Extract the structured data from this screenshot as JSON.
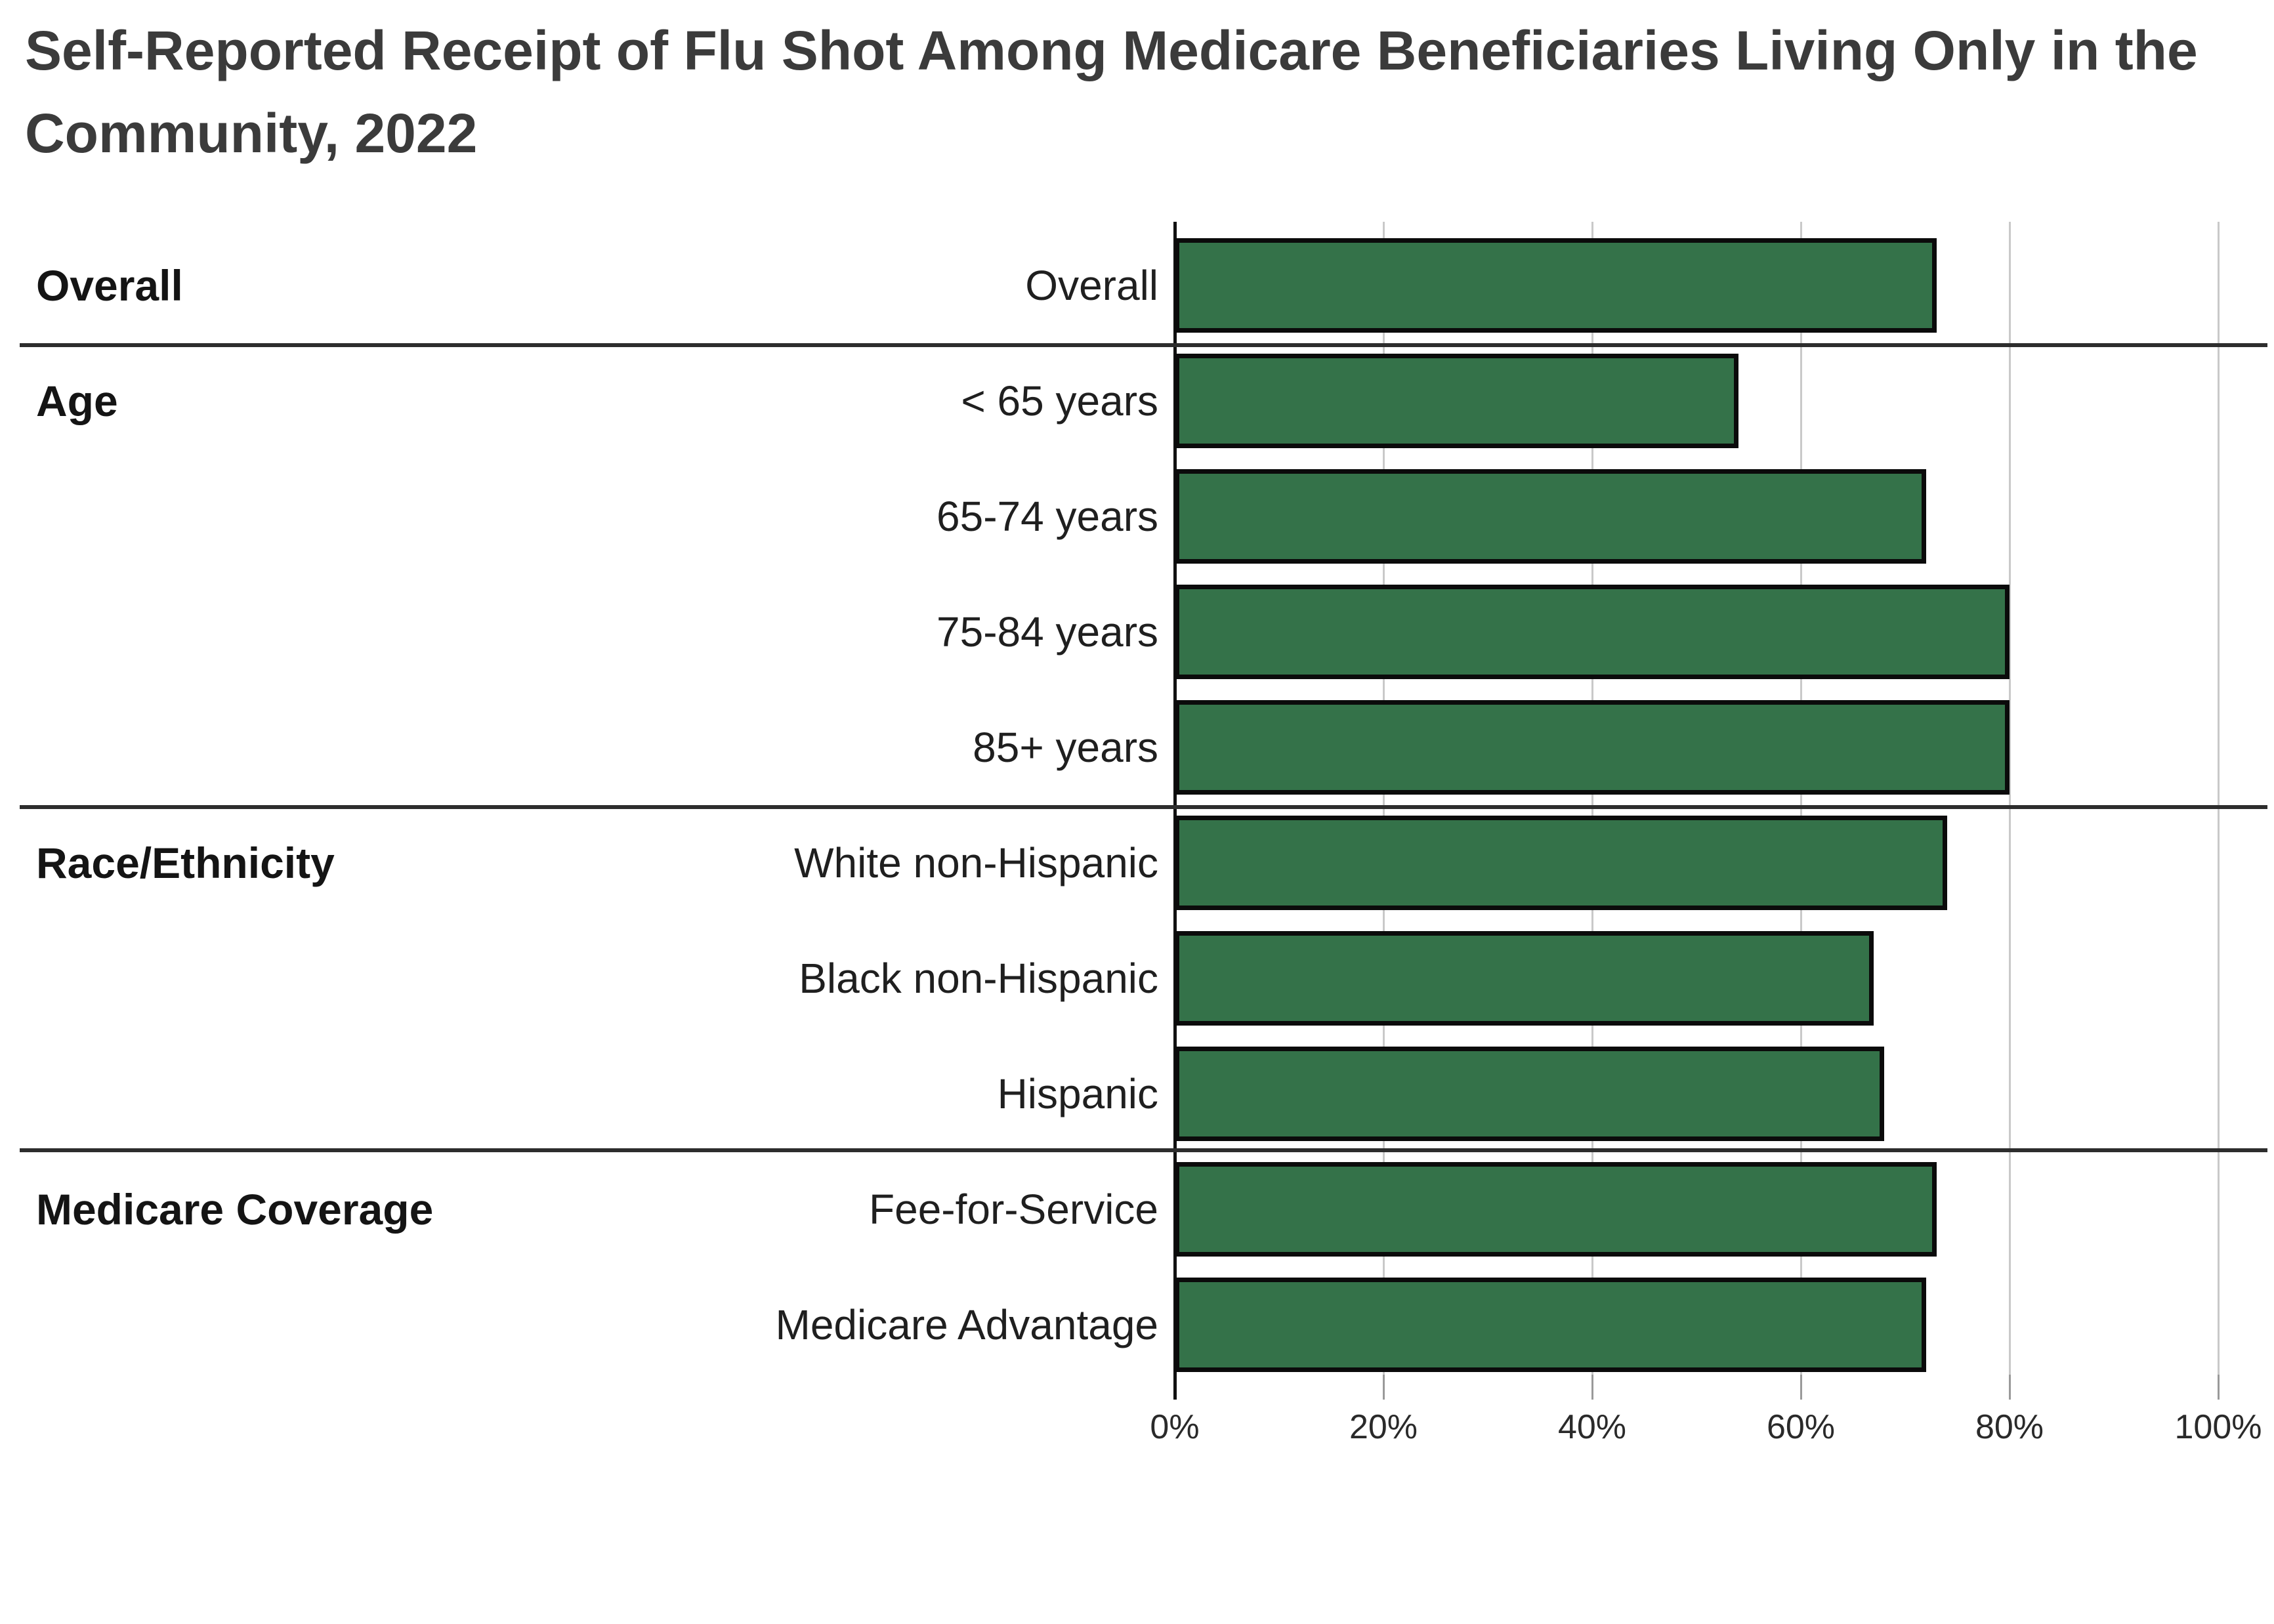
{
  "header": {
    "line1": "Self-Reported Receipt of Flu Shot Among Medicare Beneficiaries Living Only in the",
    "line2": "Community, 2022"
  },
  "chart_data": {
    "type": "bar",
    "orientation": "horizontal",
    "title": "Self-Reported Receipt of Flu Shot Among Medicare Beneficiaries Living Only in the Community, 2022",
    "xlabel": "",
    "ylabel": "",
    "xlim": [
      0,
      100
    ],
    "x_ticks": [
      {
        "value": 0,
        "label": "0%"
      },
      {
        "value": 20,
        "label": "20%"
      },
      {
        "value": 40,
        "label": "40%"
      },
      {
        "value": 60,
        "label": "60%"
      },
      {
        "value": 80,
        "label": "80%"
      },
      {
        "value": 100,
        "label": "100%"
      }
    ],
    "grid": true,
    "legend": "none",
    "bar_color": "#347249",
    "bar_border_color": "#0b0b0b",
    "groups": [
      {
        "label": "Overall",
        "rows": [
          {
            "category": "Overall",
            "value": 73
          }
        ]
      },
      {
        "label": "Age",
        "rows": [
          {
            "category": "< 65 years",
            "value": 54
          },
          {
            "category": "65-74 years",
            "value": 72
          },
          {
            "category": "75-84 years",
            "value": 80
          },
          {
            "category": "85+ years",
            "value": 80
          }
        ]
      },
      {
        "label": "Race/Ethnicity",
        "rows": [
          {
            "category": "White non-Hispanic",
            "value": 74
          },
          {
            "category": "Black non-Hispanic",
            "value": 67
          },
          {
            "category": "Hispanic",
            "value": 68
          }
        ]
      },
      {
        "label": "Medicare Coverage",
        "rows": [
          {
            "category": "Fee-for-Service",
            "value": 73
          },
          {
            "category": "Medicare Advantage",
            "value": 72
          }
        ]
      }
    ]
  }
}
